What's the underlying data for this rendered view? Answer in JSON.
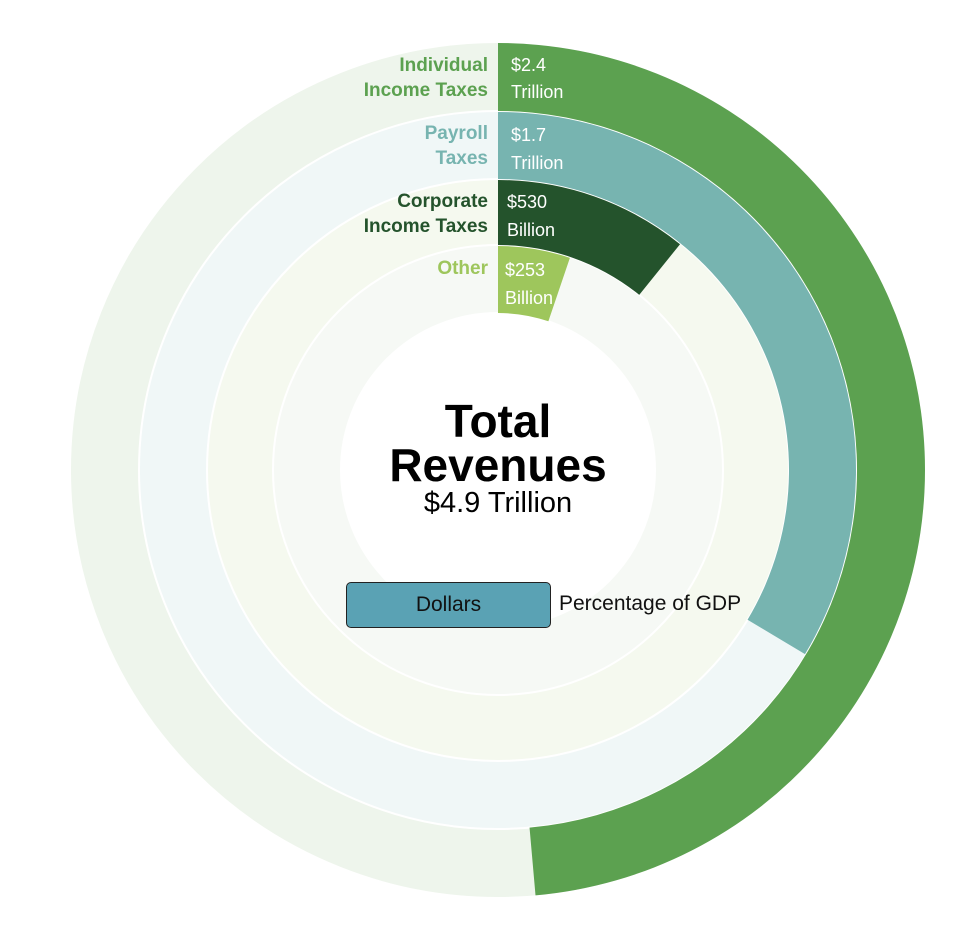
{
  "chart_data": {
    "type": "radial-bar",
    "center": {
      "title_lines": [
        "Total",
        "Revenues"
      ],
      "subtitle": "$4.9 Trillion"
    },
    "unit_note": "fraction of full circle each segment spans",
    "series": [
      {
        "name": "Individual Income Taxes",
        "name_lines": [
          "Individual",
          "Income Taxes"
        ],
        "value_lines": [
          "$2.4",
          "Trillion"
        ],
        "value": 2.4,
        "unit": "Trillion",
        "fraction": 0.486,
        "color": "#5ca150",
        "track_color": "#eef5ec",
        "label_color": "#5ca150"
      },
      {
        "name": "Payroll Taxes",
        "name_lines": [
          "Payroll",
          "Taxes"
        ],
        "value_lines": [
          "$1.7",
          "Trillion"
        ],
        "value": 1.7,
        "unit": "Trillion",
        "fraction": 0.336,
        "color": "#77b4b0",
        "track_color": "#f0f7f7",
        "label_color": "#77b4b0"
      },
      {
        "name": "Corporate Income Taxes",
        "name_lines": [
          "Corporate",
          "Income Taxes"
        ],
        "value_lines": [
          "$530",
          "Billion"
        ],
        "value": 530,
        "unit": "Billion",
        "fraction": 0.108,
        "color": "#24532c",
        "track_color": "#f5f9ef",
        "label_color": "#24532c"
      },
      {
        "name": "Other",
        "name_lines": [
          "Other"
        ],
        "value_lines": [
          "$253",
          "Billion"
        ],
        "value": 253,
        "unit": "Billion",
        "fraction": 0.052,
        "color": "#9ec65c",
        "track_color": "#f6f9f5",
        "label_color": "#9ec65c"
      }
    ]
  },
  "toggle": {
    "dollars_label": "Dollars",
    "gdp_label": "Percentage of GDP",
    "active": "dollars",
    "active_color": "#5aa2b4"
  }
}
